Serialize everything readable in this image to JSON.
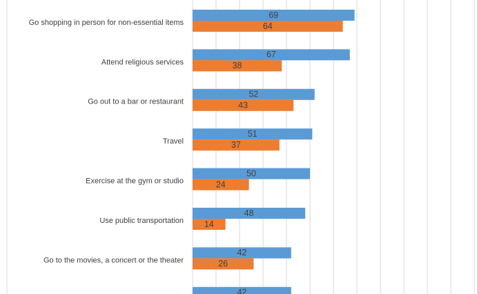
{
  "chart_data": {
    "type": "bar",
    "orientation": "horizontal",
    "categories": [
      "Go shopping in person for non-essential items",
      "Attend religious services",
      "Go out to a bar or restaurant",
      "Travel",
      "Exercise at the gym or studio",
      "Use public transportation",
      "Go to the movies, a concert or the theater",
      ""
    ],
    "series": [
      {
        "color": "#5b9bd5",
        "values": [
          69,
          67,
          52,
          51,
          50,
          48,
          42,
          42
        ]
      },
      {
        "color": "#ed7d31",
        "values": [
          64,
          38,
          43,
          37,
          24,
          14,
          26,
          null
        ]
      }
    ],
    "xlim": [
      0,
      120
    ],
    "grid": true,
    "legend": "none"
  }
}
